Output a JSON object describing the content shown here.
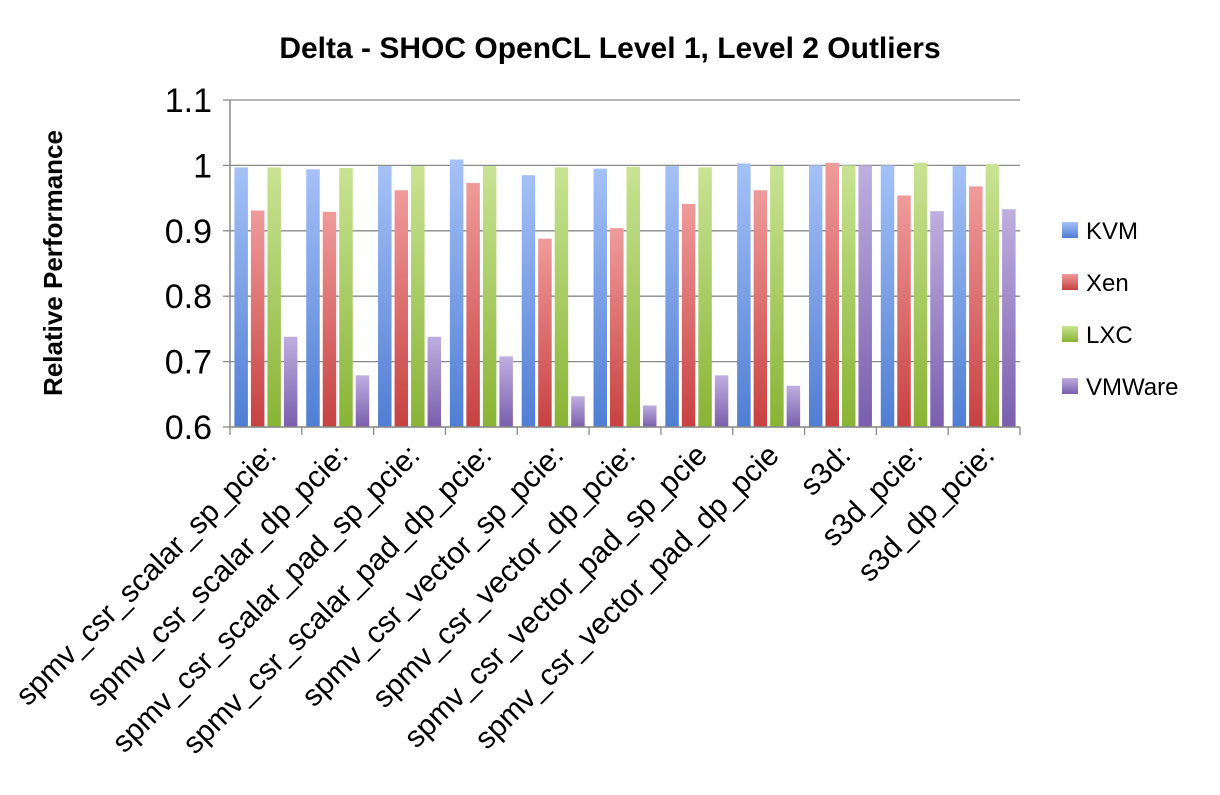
{
  "chart_data": {
    "type": "bar",
    "title": "Delta - SHOC OpenCL Level 1, Level 2 Outliers",
    "xlabel": "",
    "ylabel": "Relative Performance",
    "ylim": [
      0.6,
      1.1
    ],
    "yticks": [
      "0.6",
      "0.7",
      "0.8",
      "0.9",
      "1",
      "1.1"
    ],
    "grid": true,
    "legend_position": "right",
    "categories": [
      "spmv_csr_scalar_sp_pcie:",
      "spmv_csr_scalar_dp_pcie:",
      "spmv_csr_scalar_pad_sp_pcie:",
      "spmv_csr_scalar_pad_dp_pcie:",
      "spmv_csr_vector_sp_pcie:",
      "spmv_csr_vector_dp_pcie:",
      "spmv_csr_vector_pad_sp_pcie",
      "spmv_csr_vector_pad_dp_pcie",
      "s3d:",
      "s3d_pcie:",
      "s3d_dp_pcie:"
    ],
    "series": [
      {
        "name": "KVM",
        "color": "#5b8ff0",
        "values": [
          0.997,
          0.994,
          0.999,
          1.009,
          0.985,
          0.995,
          0.999,
          1.003,
          1.0,
          1.0,
          0.999
        ]
      },
      {
        "name": "Xen",
        "color": "#e24a4a",
        "values": [
          0.931,
          0.929,
          0.962,
          0.973,
          0.888,
          0.904,
          0.941,
          0.962,
          1.004,
          0.954,
          0.968
        ]
      },
      {
        "name": "LXC",
        "color": "#9ccc3c",
        "values": [
          0.997,
          0.996,
          0.999,
          0.999,
          0.997,
          0.998,
          0.997,
          0.999,
          1.0,
          1.004,
          1.002
        ]
      },
      {
        "name": "VMWare",
        "color": "#8a6cc4",
        "values": [
          0.738,
          0.679,
          0.738,
          0.708,
          0.647,
          0.633,
          0.679,
          0.663,
          1.0,
          0.93,
          0.933
        ]
      }
    ]
  }
}
